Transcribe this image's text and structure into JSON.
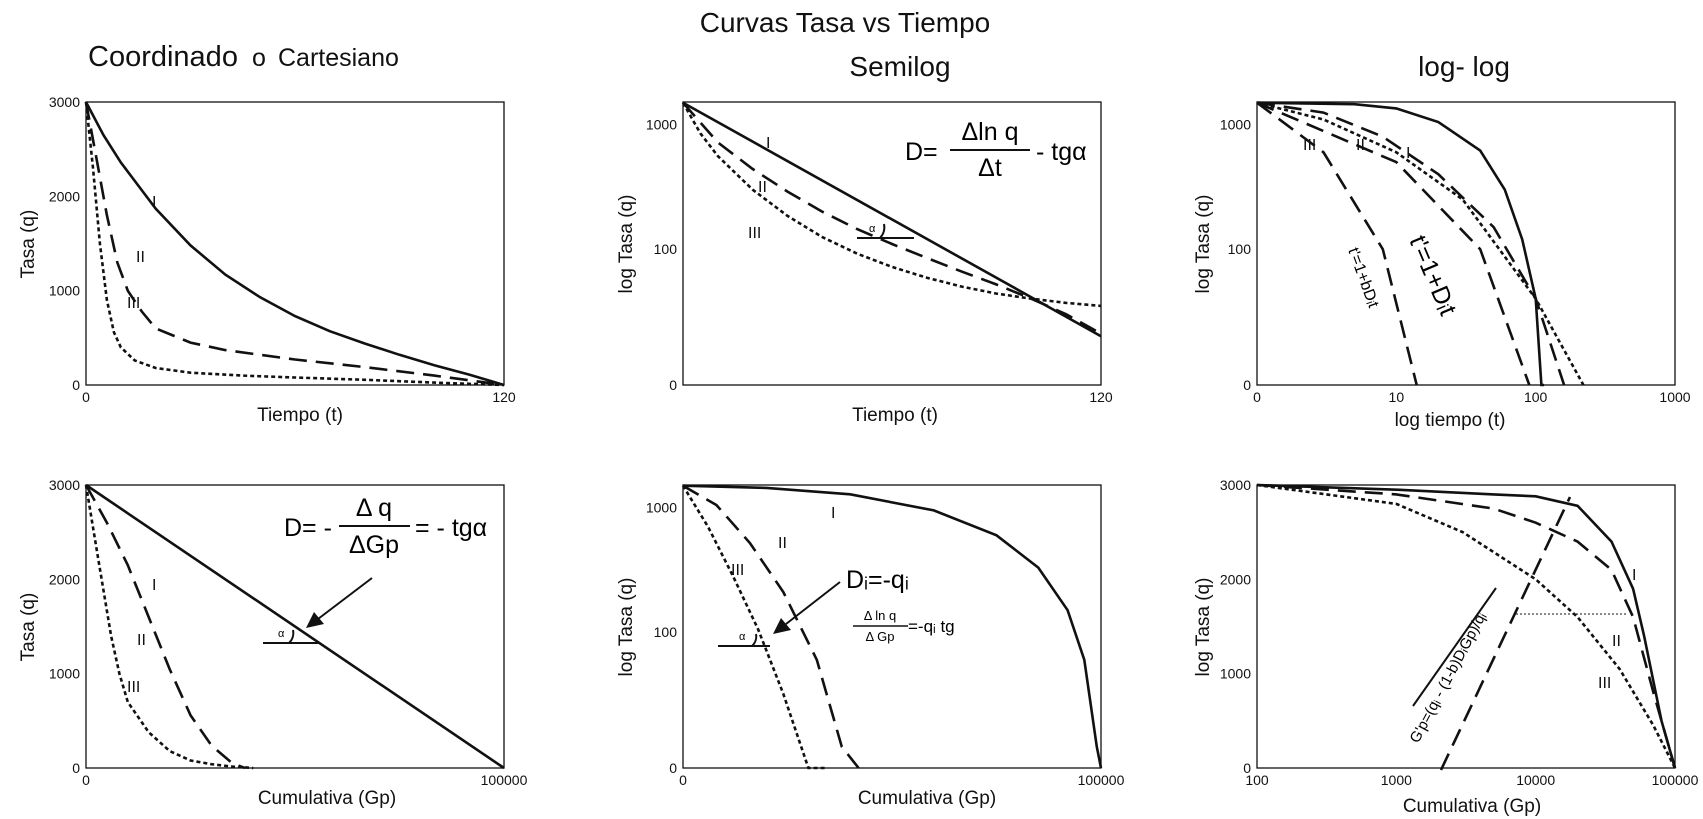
{
  "titles": {
    "main": "Curvas Tasa vs Tiempo",
    "cartesian": "Coordinado",
    "cartesian_o": "o",
    "cartesian_2": "Cartesiano",
    "semilog": "Semilog",
    "loglog": "log- log"
  },
  "formulas": {
    "semilog_top_D": "D=",
    "semilog_top_num": "Δln q",
    "semilog_top_den": "Δt",
    "semilog_top_tail": "- tgα",
    "cart_bottom_D": "D= -",
    "cart_bottom_num": "Δ q",
    "cart_bottom_den": "ΔGp",
    "cart_bottom_tail": "= - tgα",
    "semi_bottom_Di": "Dᵢ=-qᵢ",
    "semi_bottom_num": "Δ ln q",
    "semi_bottom_den": "Δ Gp",
    "semi_bottom_tail": "=-qᵢ tg",
    "loglog_top_a": "t'=1+bDᵢt",
    "loglog_top_b": "t'=1+Dᵢt",
    "loglog_bottom": "G'p=(qᵢ - (1-b)DᵢGp)/qᵢ",
    "alpha": "α"
  },
  "chart_data": [
    {
      "id": "cart-top",
      "type": "line",
      "xlabel": "Tiempo (t)",
      "ylabel": "Tasa (q)",
      "xticks": [
        "0",
        "120"
      ],
      "yticks": [
        "0",
        "1000",
        "2000",
        "3000"
      ],
      "xlim": [
        0,
        120
      ],
      "ylim": [
        0,
        3000
      ],
      "series": [
        {
          "label": "I",
          "style": "solid",
          "x": [
            0,
            5,
            10,
            20,
            30,
            40,
            50,
            60,
            70,
            80,
            90,
            100,
            110,
            120
          ],
          "y": [
            3000,
            2650,
            2360,
            1870,
            1480,
            1170,
            930,
            730,
            570,
            440,
            320,
            210,
            110,
            0
          ]
        },
        {
          "label": "II",
          "style": "dash",
          "x": [
            0,
            3,
            6,
            9,
            12,
            16,
            20,
            30,
            40,
            60,
            80,
            100,
            120
          ],
          "y": [
            3000,
            2400,
            1800,
            1300,
            1000,
            780,
            600,
            450,
            370,
            270,
            190,
            100,
            0
          ]
        },
        {
          "label": "III",
          "style": "dot",
          "x": [
            0,
            2,
            4,
            6,
            8,
            10,
            14,
            20,
            30,
            45,
            60,
            80,
            100,
            120
          ],
          "y": [
            3000,
            2300,
            1500,
            900,
            560,
            400,
            260,
            180,
            130,
            100,
            80,
            55,
            25,
            0
          ]
        }
      ]
    },
    {
      "id": "semi-top",
      "type": "line",
      "xlabel": "Tiempo (t)",
      "ylabel": "log Tasa (q)",
      "xticks": [
        "120"
      ],
      "yticks": [
        "0",
        "100",
        "1000"
      ],
      "xlim": [
        0,
        120
      ],
      "series": [
        {
          "label": "I",
          "style": "solid",
          "x": [
            0,
            120
          ],
          "y": [
            1500,
            20
          ]
        },
        {
          "label": "II",
          "style": "dash",
          "x": [
            0,
            10,
            20,
            30,
            40,
            50,
            60,
            70,
            80,
            90,
            100,
            110,
            120
          ],
          "y": [
            1500,
            720,
            440,
            290,
            200,
            145,
            110,
            85,
            66,
            52,
            40,
            30,
            21
          ]
        },
        {
          "label": "III",
          "style": "dot",
          "x": [
            0,
            5,
            10,
            20,
            30,
            40,
            50,
            60,
            70,
            80,
            90,
            100,
            110,
            120
          ],
          "y": [
            1500,
            850,
            560,
            300,
            185,
            125,
            92,
            72,
            59,
            50,
            44,
            40,
            37,
            35
          ]
        }
      ]
    },
    {
      "id": "log-top",
      "type": "line",
      "xlabel": "log tiempo (t)",
      "ylabel": "log Tasa (q)",
      "xticks": [
        "0",
        "10",
        "100",
        "1000"
      ],
      "yticks": [
        "0",
        "100",
        "1000"
      ],
      "series": [
        {
          "label": "I",
          "style": "solid",
          "x": [
            1,
            5,
            10,
            20,
            40,
            60,
            80,
            100,
            110,
            115
          ],
          "y": [
            1500,
            1460,
            1350,
            1050,
            620,
            300,
            120,
            40,
            8,
            0
          ]
        },
        {
          "label": "II",
          "style": "dash",
          "x": [
            1,
            3,
            8,
            20,
            50,
            100,
            160
          ],
          "y": [
            1500,
            1250,
            800,
            400,
            150,
            40,
            0
          ]
        },
        {
          "label": "III",
          "style": "dot",
          "x": [
            1,
            3,
            10,
            30,
            100,
            220
          ],
          "y": [
            1500,
            1100,
            600,
            250,
            40,
            0
          ]
        },
        {
          "label": "t'=1+bDᵢt",
          "style": "dash",
          "x": [
            1,
            3,
            8,
            14
          ],
          "y": [
            1500,
            600,
            100,
            0
          ]
        },
        {
          "label": "t'=1+Dᵢt",
          "style": "dash",
          "x": [
            1,
            10,
            40,
            90
          ],
          "y": [
            1500,
            500,
            100,
            0
          ]
        }
      ]
    },
    {
      "id": "cart-bottom",
      "type": "line",
      "xlabel": "Cumulativa (Gp)",
      "ylabel": "Tasa (q)",
      "xticks": [
        "0",
        "100000"
      ],
      "yticks": [
        "0",
        "1000",
        "2000",
        "3000"
      ],
      "xlim": [
        0,
        100000
      ],
      "ylim": [
        0,
        3000
      ],
      "series": [
        {
          "label": "I",
          "style": "solid",
          "x": [
            0,
            100000
          ],
          "y": [
            3000,
            0
          ]
        },
        {
          "label": "II",
          "style": "dash",
          "x": [
            0,
            5000,
            10000,
            15000,
            20000,
            25000,
            30000,
            35000,
            38000
          ],
          "y": [
            3000,
            2600,
            2150,
            1600,
            1050,
            560,
            240,
            50,
            0
          ]
        },
        {
          "label": "III",
          "style": "dot",
          "x": [
            0,
            3000,
            6000,
            8000,
            10000,
            15000,
            20000,
            25000,
            30000,
            35000,
            40000
          ],
          "y": [
            3000,
            2200,
            1400,
            1000,
            700,
            380,
            180,
            80,
            40,
            15,
            0
          ]
        }
      ]
    },
    {
      "id": "semi-bottom",
      "type": "line",
      "xlabel": "Cumulativa (Gp)",
      "ylabel": "log Tasa (q)",
      "xticks": [
        "0",
        "100000"
      ],
      "yticks": [
        "0",
        "100",
        "1000"
      ],
      "xlim": [
        0,
        100000
      ],
      "series": [
        {
          "label": "I",
          "style": "solid",
          "x": [
            0,
            20000,
            40000,
            60000,
            75000,
            85000,
            92000,
            96000,
            99000,
            100000
          ],
          "y": [
            1500,
            1440,
            1280,
            950,
            600,
            330,
            150,
            60,
            12,
            0
          ]
        },
        {
          "label": "II",
          "style": "dash",
          "x": [
            0,
            8000,
            16000,
            24000,
            32000,
            38000,
            42000
          ],
          "y": [
            1500,
            1050,
            520,
            210,
            60,
            12,
            0
          ]
        },
        {
          "label": "III",
          "style": "dot",
          "x": [
            0,
            6000,
            12000,
            18000,
            24000,
            30000,
            34000
          ],
          "y": [
            1500,
            700,
            280,
            105,
            32,
            5,
            0
          ]
        }
      ]
    },
    {
      "id": "log-bottom",
      "type": "line",
      "xlabel": "Cumulativa (Gp)",
      "ylabel": "log Tasa (q)",
      "xticks": [
        "100",
        "1000",
        "10000",
        "100000"
      ],
      "yticks": [
        "0",
        "1000",
        "2000",
        "3000"
      ],
      "ylim": [
        0,
        3000
      ],
      "series": [
        {
          "label": "I",
          "style": "solid",
          "x": [
            100,
            1000,
            5000,
            10000,
            20000,
            35000,
            50000,
            60000,
            80000,
            100000
          ],
          "y": [
            3000,
            2950,
            2900,
            2880,
            2780,
            2400,
            1900,
            1400,
            500,
            0
          ]
        },
        {
          "label": "II",
          "style": "dash",
          "x": [
            100,
            1000,
            5000,
            10000,
            20000,
            35000,
            50000,
            70000,
            100000
          ],
          "y": [
            3000,
            2900,
            2750,
            2600,
            2400,
            2100,
            1600,
            800,
            0
          ]
        },
        {
          "label": "III",
          "style": "dot",
          "x": [
            100,
            1000,
            3000,
            10000,
            20000,
            40000,
            70000,
            100000
          ],
          "y": [
            3000,
            2800,
            2500,
            2000,
            1600,
            1050,
            450,
            0
          ]
        }
      ]
    }
  ]
}
